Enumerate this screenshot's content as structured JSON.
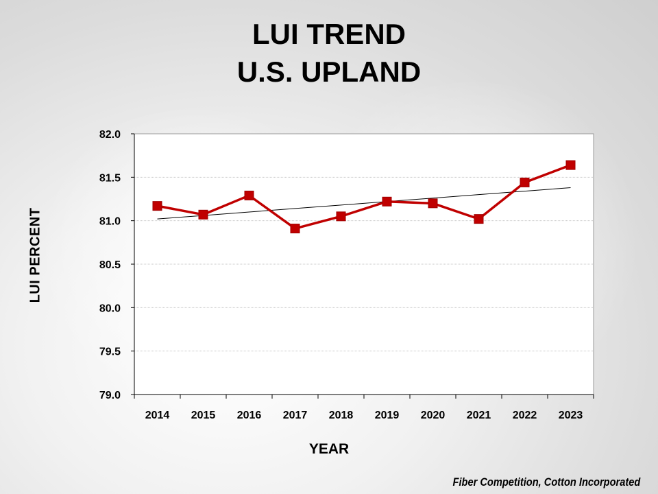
{
  "title": {
    "line1": "LUI TREND",
    "line2": "U.S. UPLAND"
  },
  "credit": "Fiber Competition, Cotton Incorporated",
  "chart_data": {
    "type": "line",
    "title": "LUI TREND U.S. UPLAND",
    "xlabel": "YEAR",
    "ylabel": "LUI PERCENT",
    "categories": [
      "2014",
      "2015",
      "2016",
      "2017",
      "2018",
      "2019",
      "2020",
      "2021",
      "2022",
      "2023"
    ],
    "ylim": [
      79.0,
      82.0
    ],
    "yticks": [
      "79.0",
      "79.5",
      "80.0",
      "80.5",
      "81.0",
      "81.5",
      "82.0"
    ],
    "grid": true,
    "series": [
      {
        "name": "LUI",
        "values": [
          81.17,
          81.07,
          81.29,
          80.91,
          81.05,
          81.22,
          81.2,
          81.02,
          81.44,
          81.64
        ],
        "color": "#c00000",
        "marker": "square"
      },
      {
        "name": "Trend",
        "type": "linear-trendline",
        "values": [
          81.02,
          81.06,
          81.1,
          81.14,
          81.18,
          81.22,
          81.26,
          81.3,
          81.34,
          81.38
        ],
        "color": "#000000"
      }
    ]
  }
}
